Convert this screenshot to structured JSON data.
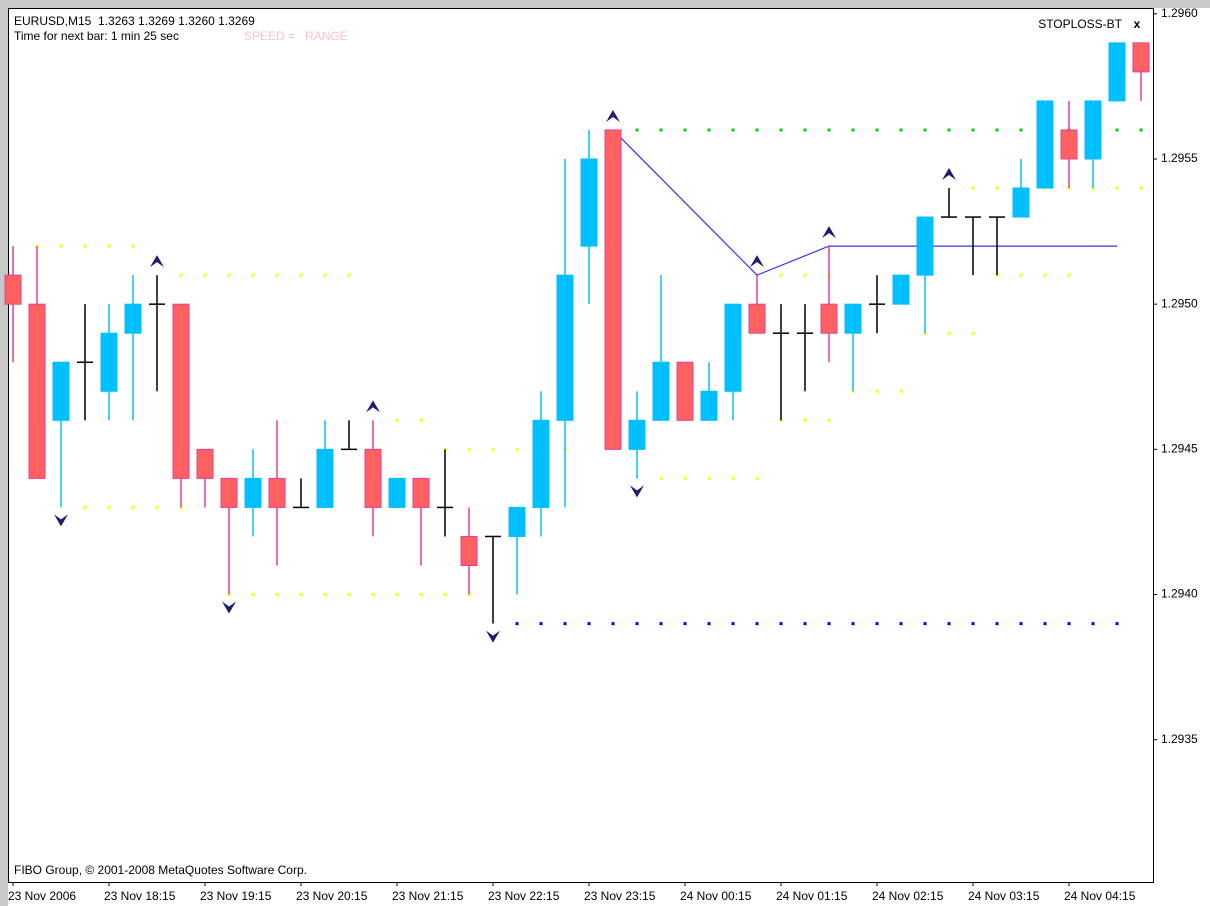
{
  "chart_data": {
    "type": "candlestick",
    "title": "EURUSD,M15  1.3263 1.3269 1.3260 1.3269",
    "subtitle": "Time for next bar: 1 min 25 sec",
    "indicator_label": "SPEED =   RANGE",
    "expert_name": "STOPLOSS-BT",
    "close_button": "x",
    "copyright": "FIBO Group, © 2001-2008 MetaQuotes Software Corp.",
    "categories": [
      "23 Nov 2006",
      null,
      null,
      null,
      "23 Nov 18:15",
      null,
      null,
      null,
      "23 Nov 19:15",
      null,
      null,
      null,
      "23 Nov 20:15",
      null,
      null,
      null,
      "23 Nov 21:15",
      null,
      null,
      null,
      "23 Nov 22:15",
      null,
      null,
      null,
      "23 Nov 23:15",
      null,
      null,
      null,
      "24 Nov 00:15",
      null,
      null,
      null,
      "24 Nov 01:15",
      null,
      null,
      null,
      "24 Nov 02:15",
      null,
      null,
      null,
      "24 Nov 03:15",
      null,
      null,
      null,
      "24 Nov 04:15",
      null,
      null,
      null
    ],
    "open": [
      1.2951,
      1.295,
      1.2946,
      1.2948,
      1.2947,
      1.2949,
      1.295,
      1.295,
      1.2945,
      1.2944,
      1.2943,
      1.2944,
      1.2943,
      1.2943,
      1.2945,
      1.2945,
      1.2943,
      1.2944,
      1.2943,
      1.2942,
      1.2942,
      1.2942,
      1.2943,
      1.2946,
      1.2952,
      1.2956,
      1.2945,
      1.2946,
      1.2948,
      1.2946,
      1.2947,
      1.295,
      1.2949,
      1.2949,
      1.295,
      1.2949,
      1.295,
      1.295,
      1.2951,
      1.2953,
      1.2953,
      1.2953,
      1.2953,
      1.2954,
      1.2956,
      1.2955,
      1.2957,
      1.2959
    ],
    "high": [
      1.2952,
      1.2952,
      1.2948,
      1.295,
      1.295,
      1.2951,
      1.2951,
      1.295,
      1.2945,
      1.2944,
      1.2945,
      1.2946,
      1.2944,
      1.2946,
      1.2946,
      1.2946,
      1.2944,
      1.2944,
      1.2945,
      1.2943,
      1.2942,
      1.2943,
      1.2947,
      1.2955,
      1.2956,
      1.2956,
      1.2947,
      1.2951,
      1.2948,
      1.2948,
      1.295,
      1.2951,
      1.295,
      1.295,
      1.2952,
      1.295,
      1.2951,
      1.2951,
      1.2953,
      1.2954,
      1.2953,
      1.2953,
      1.2955,
      1.2957,
      1.2957,
      1.2957,
      1.2959,
      1.2959
    ],
    "low": [
      1.2948,
      1.2944,
      1.2943,
      1.2946,
      1.2946,
      1.2946,
      1.2947,
      1.2943,
      1.2943,
      1.294,
      1.2942,
      1.2941,
      1.2943,
      1.2943,
      1.2945,
      1.2942,
      1.2943,
      1.2941,
      1.2942,
      1.294,
      1.2939,
      1.294,
      1.2942,
      1.2943,
      1.295,
      1.2945,
      1.2944,
      1.2946,
      1.2946,
      1.2946,
      1.2946,
      1.2949,
      1.2946,
      1.2947,
      1.2948,
      1.2947,
      1.2949,
      1.295,
      1.2949,
      1.2953,
      1.2951,
      1.2951,
      1.2953,
      1.2954,
      1.2954,
      1.2954,
      1.2957,
      1.2957
    ],
    "close": [
      1.295,
      1.2944,
      1.2948,
      1.2948,
      1.2949,
      1.295,
      1.295,
      1.2944,
      1.2944,
      1.2943,
      1.2944,
      1.2943,
      1.2943,
      1.2945,
      1.2945,
      1.2943,
      1.2944,
      1.2943,
      1.2943,
      1.2941,
      1.2942,
      1.2943,
      1.2946,
      1.2951,
      1.2955,
      1.2945,
      1.2946,
      1.2948,
      1.2946,
      1.2947,
      1.295,
      1.2949,
      1.2949,
      1.2949,
      1.2949,
      1.295,
      1.295,
      1.2951,
      1.2953,
      1.2953,
      1.2953,
      1.2953,
      1.2954,
      1.2957,
      1.2955,
      1.2957,
      1.2959,
      1.2958
    ],
    "up_color": "#00bfff",
    "down_color": "#ff6060",
    "down_wick_color": "#e0409a",
    "doji_color": "#000000",
    "fractals_up": [
      6,
      15,
      25,
      31,
      34,
      39
    ],
    "fractals_down": [
      2,
      9,
      20,
      26
    ],
    "fractal_color": "#1c1c70",
    "zigzag": {
      "x": [
        25,
        31,
        34,
        46
      ],
      "values": [
        1.2956,
        1.2951,
        1.2952,
        1.2952
      ],
      "color": "#3535ee"
    },
    "levels": [
      {
        "value": 1.2952,
        "from": 1,
        "to": 5,
        "color": "#ffff00"
      },
      {
        "value": 1.2951,
        "from": 7,
        "to": 14,
        "color": "#ffff00"
      },
      {
        "value": 1.2943,
        "from": 3,
        "to": 7,
        "color": "#ffff00"
      },
      {
        "value": 1.294,
        "from": 9,
        "to": 19,
        "color": "#ffff00"
      },
      {
        "value": 1.2946,
        "from": 16,
        "to": 17,
        "color": "#ffff00"
      },
      {
        "value": 1.2945,
        "from": 18,
        "to": 23,
        "color": "#ffff00"
      },
      {
        "value": 1.2956,
        "from": 26,
        "to": 47,
        "color": "#00cc00"
      },
      {
        "value": 1.2944,
        "from": 27,
        "to": 31,
        "color": "#ffff00"
      },
      {
        "value": 1.2946,
        "from": 32,
        "to": 34,
        "color": "#ffff00"
      },
      {
        "value": 1.2951,
        "from": 32,
        "to": 34,
        "color": "#ffff00"
      },
      {
        "value": 1.2947,
        "from": 35,
        "to": 37,
        "color": "#ffff00"
      },
      {
        "value": 1.2949,
        "from": 38,
        "to": 40,
        "color": "#ffff00"
      },
      {
        "value": 1.2951,
        "from": 41,
        "to": 44,
        "color": "#ffff00"
      },
      {
        "value": 1.2954,
        "from": 40,
        "to": 47,
        "color": "#ffff00"
      },
      {
        "value": 1.2939,
        "from": 21,
        "to": 46,
        "color": "#0000ff"
      }
    ],
    "ylim": [
      1.29301,
      1.29602
    ],
    "yticks": [
      {
        "value": 1.296,
        "label": "1.2960"
      },
      1.2955,
      {
        "value": 1.295,
        "label": "1.2950"
      },
      1.2945,
      {
        "value": 1.294,
        "label": "1.2940"
      },
      1.2935
    ]
  }
}
